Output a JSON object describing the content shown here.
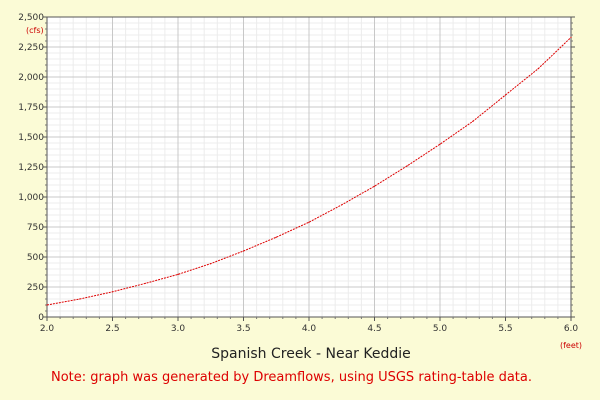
{
  "chart_data": {
    "type": "line",
    "title": "Spanish Creek - Near Keddie",
    "xlabel": "(feet)",
    "ylabel": "(cfs)",
    "xlim": [
      2.0,
      6.0
    ],
    "ylim": [
      0,
      2500
    ],
    "x_ticks": [
      "2.0",
      "2.5",
      "3.0",
      "3.5",
      "4.0",
      "4.5",
      "5.0",
      "5.5",
      "6.0"
    ],
    "y_ticks": [
      "0",
      "250",
      "500",
      "750",
      "1,000",
      "1,250",
      "1,500",
      "1,750",
      "2,000",
      "2,250",
      "2,500"
    ],
    "grid": true,
    "series": [
      {
        "color": "#dd0000",
        "x": [
          2.0,
          2.25,
          2.5,
          2.75,
          3.0,
          3.25,
          3.5,
          3.75,
          4.0,
          4.25,
          4.5,
          4.75,
          5.0,
          5.25,
          5.5,
          5.75,
          6.0
        ],
        "y": [
          100,
          150,
          210,
          280,
          355,
          445,
          550,
          665,
          790,
          935,
          1090,
          1260,
          1440,
          1630,
          1850,
          2070,
          2330
        ]
      }
    ],
    "note": "Note: graph was generated by Dreamflows, using USGS rating-table data."
  }
}
